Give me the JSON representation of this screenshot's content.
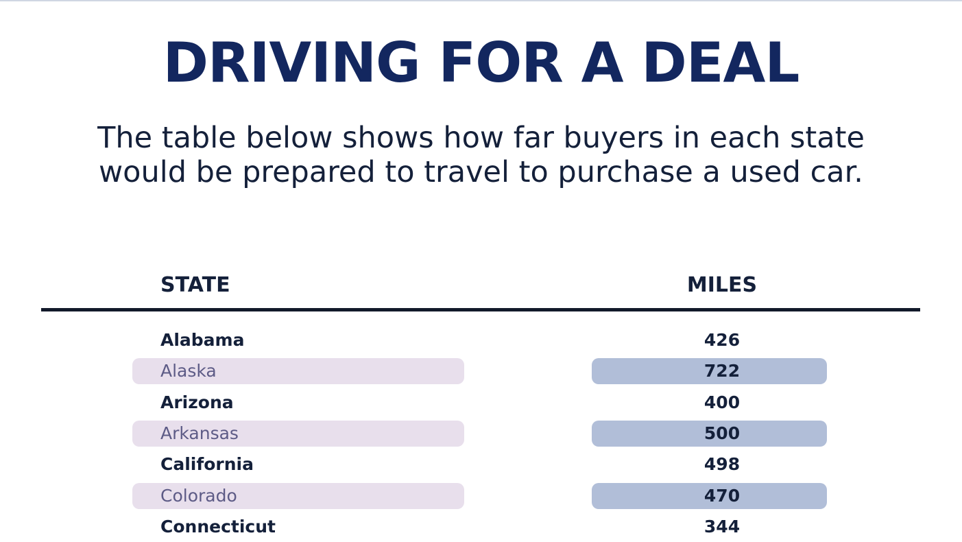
{
  "title": "DRIVING FOR A DEAL",
  "subtitle_line1": "The table below shows how far buyers in each state",
  "subtitle_line2": "would be prepared to travel to purchase a used car.",
  "colors": {
    "title": "#13275f",
    "text": "#14203a",
    "highlight_state_bg": "#e8dfec",
    "highlight_miles_bg": "#b1bed8",
    "highlight_state_text": "#5d5b86",
    "rule": "#121a2a"
  },
  "chart_data": {
    "type": "table",
    "title": "DRIVING FOR A DEAL",
    "columns": [
      "STATE",
      "MILES"
    ],
    "rows": [
      {
        "state": "Alabama",
        "miles": 426,
        "highlighted": false
      },
      {
        "state": "Alaska",
        "miles": 722,
        "highlighted": true
      },
      {
        "state": "Arizona",
        "miles": 400,
        "highlighted": false
      },
      {
        "state": "Arkansas",
        "miles": 500,
        "highlighted": true
      },
      {
        "state": "California",
        "miles": 498,
        "highlighted": false
      },
      {
        "state": "Colorado",
        "miles": 470,
        "highlighted": true
      },
      {
        "state": "Connecticut",
        "miles": 344,
        "highlighted": false
      }
    ]
  }
}
